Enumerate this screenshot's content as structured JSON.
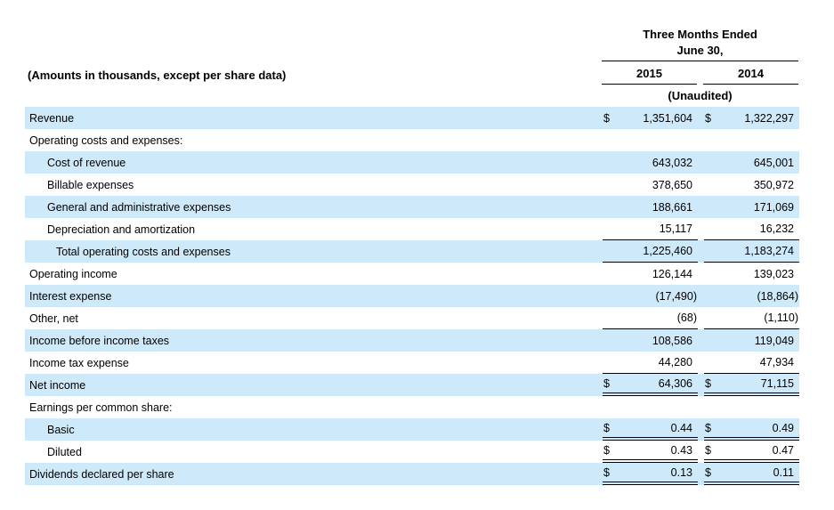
{
  "header": {
    "amounts_note": "(Amounts in thousands, except per share data)",
    "period_line1": "Three Months Ended",
    "period_line2": "June 30,",
    "col_year_1": "2015",
    "col_year_2": "2014",
    "unaudited": "(Unaudited)"
  },
  "colors": {
    "row_highlight": "#CDE9FA",
    "rule_line": "#000000",
    "text": "#000000",
    "background": "#FFFFFF"
  },
  "table": {
    "columns": [
      "2015",
      "2014"
    ],
    "rows": [
      {
        "label": "Revenue",
        "indent": 0,
        "highlighted": true,
        "cur1": "$",
        "val1": "1,351,604",
        "cur2": "$",
        "val2": "1,322,297",
        "underline": "none"
      },
      {
        "label": "Operating costs and expenses:",
        "indent": 0,
        "highlighted": false,
        "cur1": "",
        "val1": "",
        "cur2": "",
        "val2": "",
        "underline": "none"
      },
      {
        "label": "Cost of revenue",
        "indent": 1,
        "highlighted": true,
        "cur1": "",
        "val1": "643,032",
        "cur2": "",
        "val2": "645,001",
        "underline": "none"
      },
      {
        "label": "Billable expenses",
        "indent": 1,
        "highlighted": false,
        "cur1": "",
        "val1": "378,650",
        "cur2": "",
        "val2": "350,972",
        "underline": "none"
      },
      {
        "label": "General and administrative expenses",
        "indent": 1,
        "highlighted": true,
        "cur1": "",
        "val1": "188,661",
        "cur2": "",
        "val2": "171,069",
        "underline": "none"
      },
      {
        "label": "Depreciation and amortization",
        "indent": 1,
        "highlighted": false,
        "cur1": "",
        "val1": "15,117",
        "cur2": "",
        "val2": "16,232",
        "underline": "single"
      },
      {
        "label": "Total operating costs and expenses",
        "indent": 2,
        "highlighted": true,
        "cur1": "",
        "val1": "1,225,460",
        "cur2": "",
        "val2": "1,183,274",
        "underline": "single"
      },
      {
        "label": "Operating income",
        "indent": 0,
        "highlighted": false,
        "cur1": "",
        "val1": "126,144",
        "cur2": "",
        "val2": "139,023",
        "underline": "none"
      },
      {
        "label": "Interest expense",
        "indent": 0,
        "highlighted": true,
        "cur1": "",
        "val1": "(17,490)",
        "cur2": "",
        "val2": "(18,864)",
        "underline": "none"
      },
      {
        "label": "Other, net",
        "indent": 0,
        "highlighted": false,
        "cur1": "",
        "val1": "(68)",
        "cur2": "",
        "val2": "(1,110)",
        "underline": "single"
      },
      {
        "label": "Income before income taxes",
        "indent": 0,
        "highlighted": true,
        "cur1": "",
        "val1": "108,586",
        "cur2": "",
        "val2": "119,049",
        "underline": "none"
      },
      {
        "label": "Income tax expense",
        "indent": 0,
        "highlighted": false,
        "cur1": "",
        "val1": "44,280",
        "cur2": "",
        "val2": "47,934",
        "underline": "single"
      },
      {
        "label": "Net income",
        "indent": 0,
        "highlighted": true,
        "cur1": "$",
        "val1": "64,306",
        "cur2": "$",
        "val2": "71,115",
        "underline": "double"
      },
      {
        "label": "Earnings per common share:",
        "indent": 0,
        "highlighted": false,
        "cur1": "",
        "val1": "",
        "cur2": "",
        "val2": "",
        "underline": "none"
      },
      {
        "label": "Basic",
        "indent": 1,
        "highlighted": true,
        "cur1": "$",
        "val1": "0.44",
        "cur2": "$",
        "val2": "0.49",
        "underline": "double"
      },
      {
        "label": "Diluted",
        "indent": 1,
        "highlighted": false,
        "cur1": "$",
        "val1": "0.43",
        "cur2": "$",
        "val2": "0.47",
        "underline": "double"
      },
      {
        "label": "Dividends declared per share",
        "indent": 0,
        "highlighted": true,
        "cur1": "$",
        "val1": "0.13",
        "cur2": "$",
        "val2": "0.11",
        "underline": "double"
      }
    ]
  }
}
